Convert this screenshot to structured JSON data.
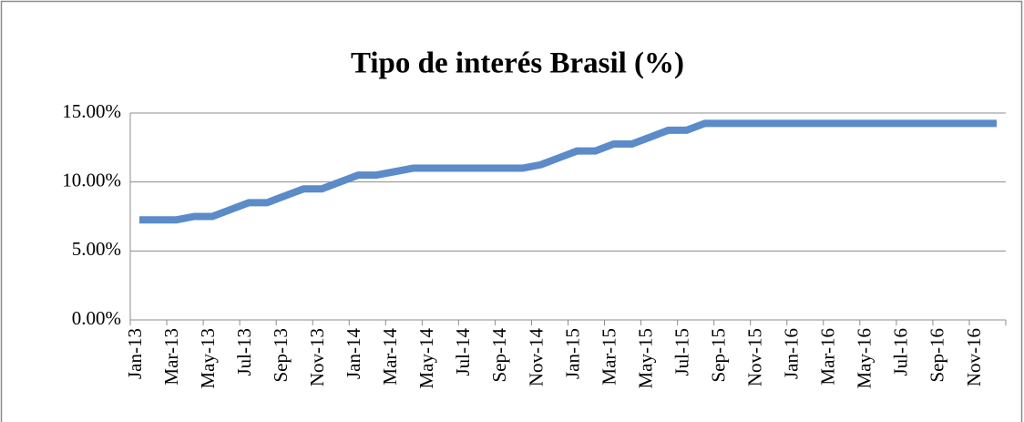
{
  "chart_data": {
    "type": "line",
    "title": "Tipo de interés Brasil (%)",
    "categories": [
      "Jan-13",
      null,
      "Mar-13",
      null,
      "May-13",
      null,
      "Jul-13",
      null,
      "Sep-13",
      null,
      "Nov-13",
      null,
      "Jan-14",
      null,
      "Mar-14",
      null,
      "May-14",
      null,
      "Jul-14",
      null,
      "Sep-14",
      null,
      "Nov-14",
      null,
      "Jan-15",
      null,
      "Mar-15",
      null,
      "May-15",
      null,
      "Jul-15",
      null,
      "Sep-15",
      null,
      "Nov-15",
      null,
      "Jan-16",
      null,
      "Mar-16",
      null,
      "May-16",
      null,
      "Jul-16",
      null,
      "Sep-16",
      null,
      "Nov-16",
      null
    ],
    "values": [
      7.25,
      7.25,
      7.25,
      7.5,
      7.5,
      8,
      8.5,
      8.5,
      9,
      9.5,
      9.5,
      10,
      10.5,
      10.5,
      10.75,
      11,
      11,
      11,
      11,
      11,
      11,
      11,
      11.25,
      11.75,
      12.25,
      12.25,
      12.75,
      12.75,
      13.25,
      13.75,
      13.75,
      14.25,
      14.25,
      14.25,
      14.25,
      14.25,
      14.25,
      14.25,
      14.25,
      14.25,
      14.25,
      14.25,
      14.25,
      14.25,
      14.25,
      14.25,
      14.25,
      14.25
    ],
    "color": "#5b8bc8",
    "ylim": [
      0,
      15
    ],
    "yticks": [
      {
        "value": 0,
        "label": "0.00%"
      },
      {
        "value": 5,
        "label": "5.00%"
      },
      {
        "value": 10,
        "label": "10.00%"
      },
      {
        "value": 15,
        "label": "15.00%"
      }
    ],
    "grid": true
  }
}
